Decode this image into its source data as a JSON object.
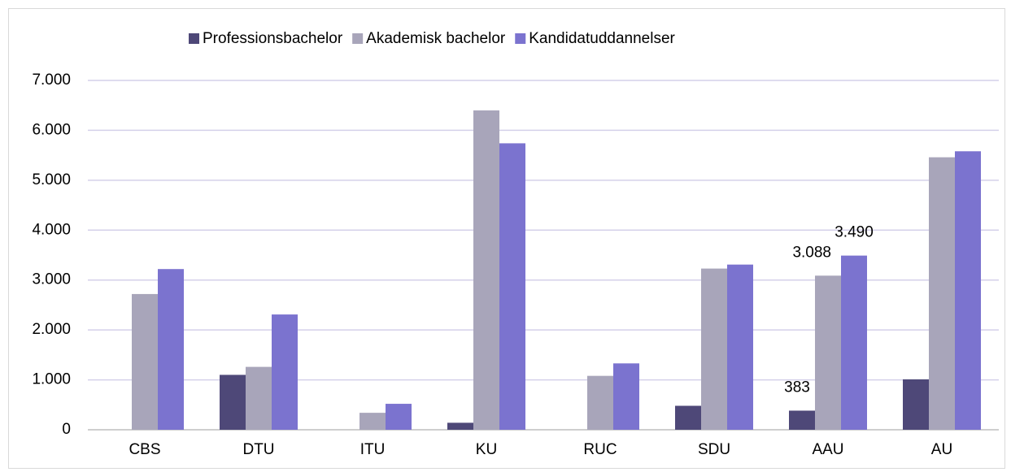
{
  "chart_data": {
    "type": "bar",
    "categories": [
      "CBS",
      "DTU",
      "ITU",
      "KU",
      "RUC",
      "SDU",
      "AAU",
      "AU"
    ],
    "series": [
      {
        "name": "Professionsbachelor",
        "color": "#4e4878",
        "values": [
          0,
          1100,
          0,
          140,
          0,
          480,
          383,
          1010
        ],
        "value_labels": [
          null,
          null,
          null,
          null,
          null,
          null,
          "383",
          null
        ]
      },
      {
        "name": "Akademisk bachelor",
        "color": "#a8a5ba",
        "values": [
          2720,
          1260,
          340,
          6400,
          1080,
          3230,
          3088,
          5460
        ],
        "value_labels": [
          null,
          null,
          null,
          null,
          null,
          null,
          "3.088",
          null
        ]
      },
      {
        "name": "Kandidatuddannelser",
        "color": "#7b73cf",
        "values": [
          3220,
          2310,
          520,
          5740,
          1330,
          3310,
          3490,
          5580
        ],
        "value_labels": [
          null,
          null,
          null,
          null,
          null,
          null,
          "3.490",
          null
        ]
      }
    ],
    "ylim": [
      0,
      7000
    ],
    "yticks": [
      0,
      {
        "value": 1000,
        "label": "1.000"
      },
      {
        "value": 2000,
        "label": "2.000"
      },
      {
        "value": 3000,
        "label": "3.000"
      },
      {
        "value": 4000,
        "label": "4.000"
      },
      {
        "value": 5000,
        "label": "5.000"
      },
      {
        "value": 6000,
        "label": "6.000"
      },
      {
        "value": 7000,
        "label": "7.000"
      }
    ],
    "grid": true,
    "legend": "top"
  }
}
